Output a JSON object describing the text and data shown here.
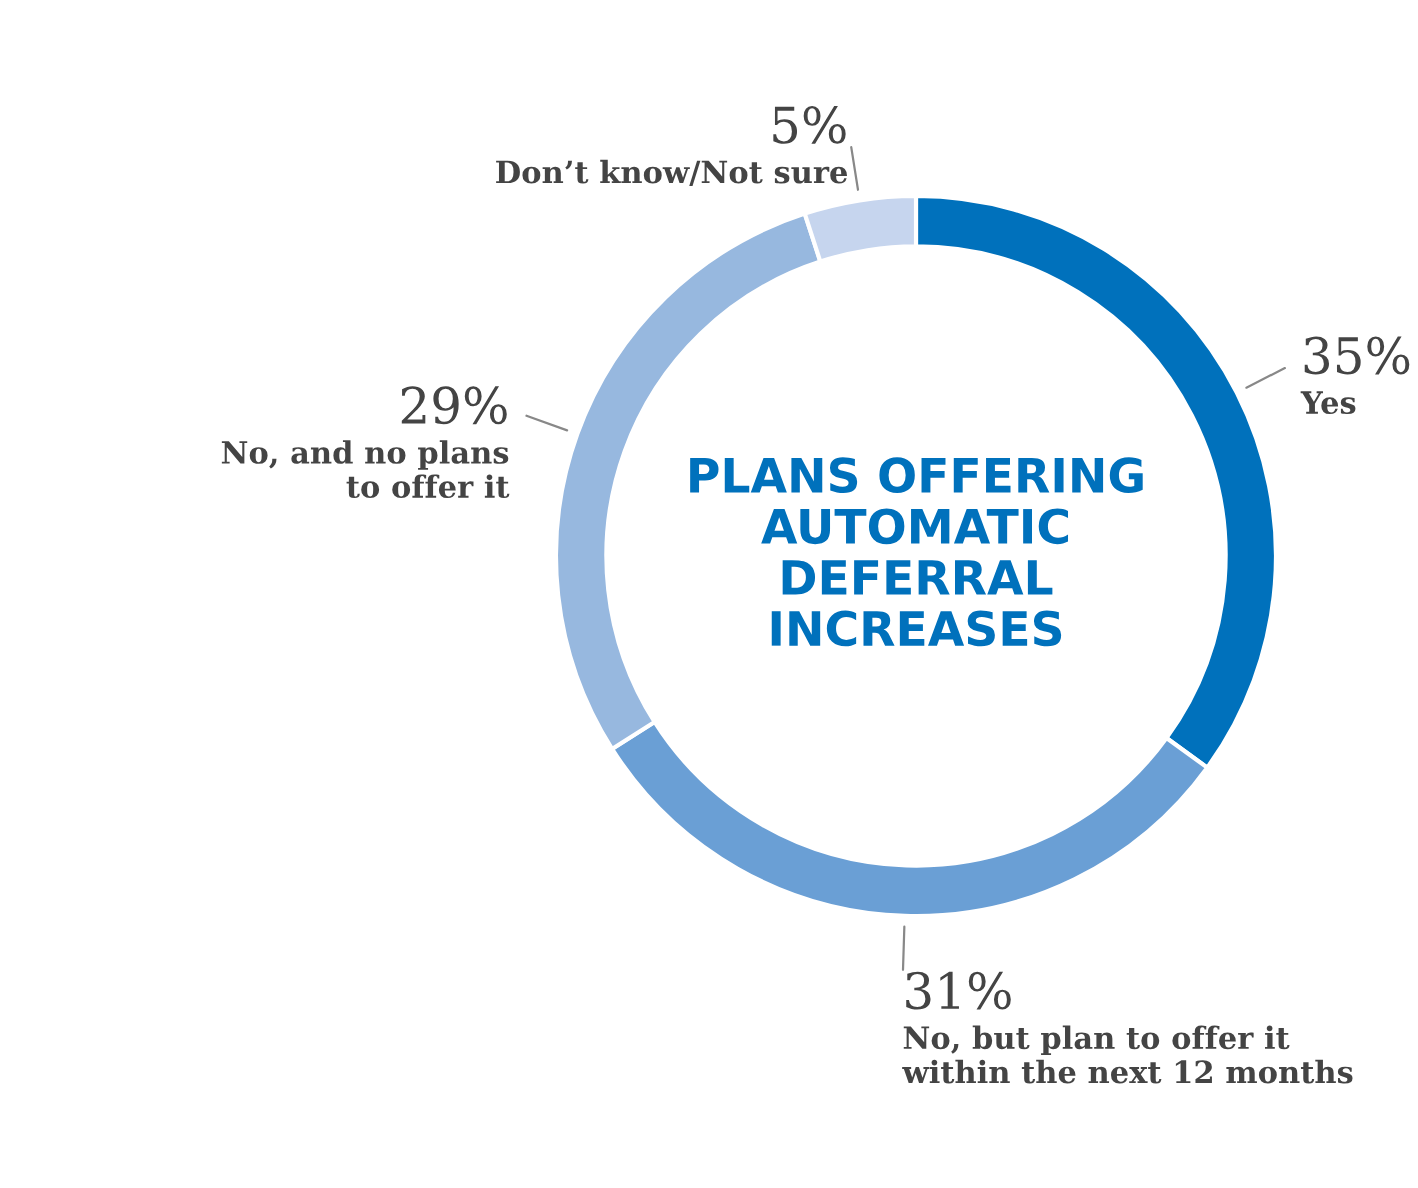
{
  "chart_data": {
    "type": "donut",
    "title": "PLANS OFFERING\nAUTOMATIC\nDEFERRAL\nINCREASES",
    "categories": [
      "Yes",
      "No, but plan to offer it\nwithin the next 12 months",
      "No, and no plans\nto offer it",
      "Don’t know/Not sure"
    ],
    "values": [
      35,
      31,
      29,
      5
    ],
    "colors": [
      "#0071bc",
      "#6a9fd5",
      "#97b8df",
      "#c6d5ee"
    ],
    "value_labels": [
      "35%",
      "31%",
      "29%",
      "5%"
    ]
  }
}
